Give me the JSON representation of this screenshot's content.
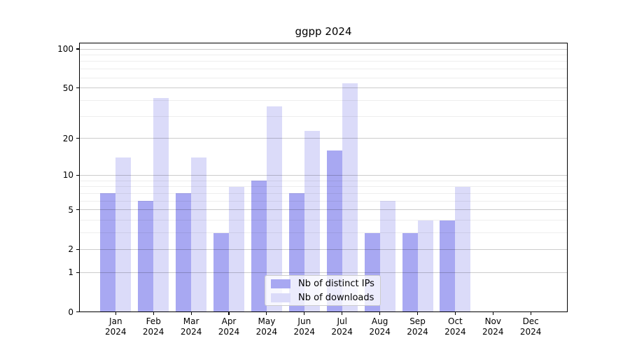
{
  "title": "ggpp 2024",
  "legend": {
    "items": [
      {
        "label": "Nb of distinct IPs",
        "color": "#a8a8f2"
      },
      {
        "label": "Nb of downloads",
        "color": "#dbdbf9"
      }
    ]
  },
  "chart_data": {
    "type": "bar",
    "title": "ggpp 2024",
    "categories": [
      "Jan 2024",
      "Feb 2024",
      "Mar 2024",
      "Apr 2024",
      "May 2024",
      "Jun 2024",
      "Jul 2024",
      "Aug 2024",
      "Sep 2024",
      "Oct 2024",
      "Nov 2024",
      "Dec 2024"
    ],
    "series": [
      {
        "name": "Nb of distinct IPs",
        "color": "#a8a8f2",
        "values": [
          7,
          6,
          7,
          3,
          9,
          7,
          16,
          3,
          3,
          4,
          0,
          0
        ]
      },
      {
        "name": "Nb of downloads",
        "color": "#dbdbf9",
        "values": [
          14,
          42,
          14,
          8,
          36,
          23,
          54,
          6,
          4,
          8,
          0,
          0
        ]
      }
    ],
    "xlabel": "",
    "ylabel": "",
    "yscale": "log1p",
    "ylim": [
      0,
      112
    ],
    "yticks": [
      0,
      1,
      2,
      5,
      10,
      20,
      50,
      100
    ],
    "minor_yticks": [
      3,
      4,
      6,
      7,
      8,
      9,
      30,
      40,
      60,
      70,
      80,
      90
    ],
    "grid": true,
    "legend_position": "lower center"
  }
}
